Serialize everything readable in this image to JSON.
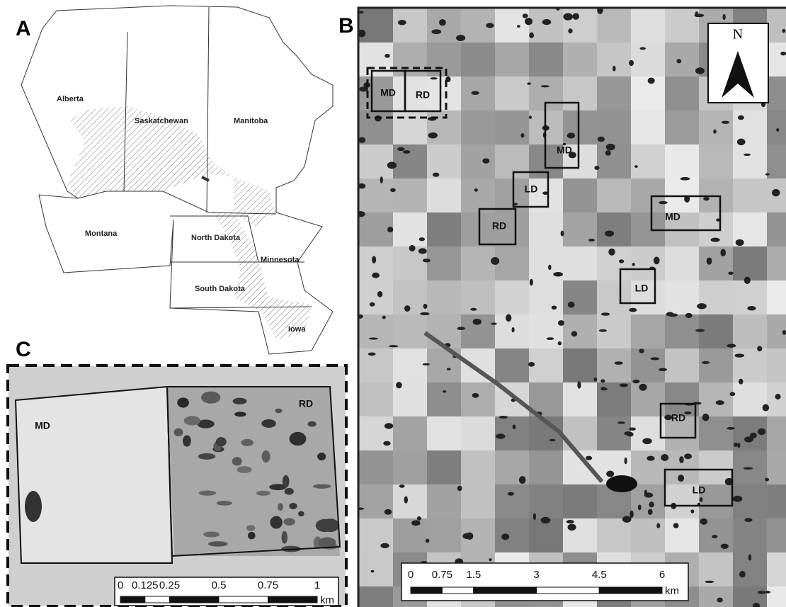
{
  "panels": {
    "a": {
      "label": "A",
      "regions": [
        "Alberta",
        "Saskatchewan",
        "Manitoba",
        "Montana",
        "North Dakota",
        "Minnesota",
        "South Dakota",
        "Iowa"
      ]
    },
    "b": {
      "label": "B",
      "north": "N",
      "plots": [
        "MD",
        "RD",
        "MD",
        "LD",
        "RD",
        "MD",
        "LD",
        "RD",
        "LD"
      ],
      "scale": {
        "ticks": [
          0,
          0.75,
          1.5,
          3,
          4.5,
          6
        ],
        "unit": "km"
      }
    },
    "c": {
      "label": "C",
      "plots": [
        "MD",
        "RD"
      ],
      "scale": {
        "ticks": [
          0,
          0.125,
          0.25,
          0.5,
          0.75,
          1
        ],
        "unit": "km"
      }
    }
  }
}
